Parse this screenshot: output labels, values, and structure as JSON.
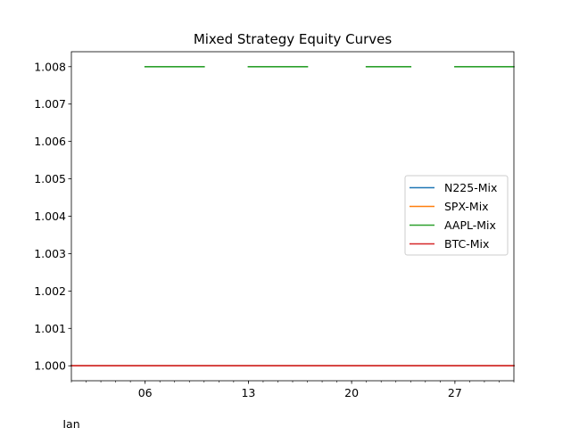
{
  "chart_data": {
    "type": "line",
    "title": "Mixed Strategy Equity Curves",
    "xlabel": "",
    "ylabel": "",
    "x_start": "2024-01-01",
    "x_end": "2024-01-31",
    "x_ticks": [
      {
        "date": "2024-01-06",
        "label": "06"
      },
      {
        "date": "2024-01-13",
        "label": "13"
      },
      {
        "date": "2024-01-20",
        "label": "20"
      },
      {
        "date": "2024-01-27",
        "label": "27"
      }
    ],
    "x_month_label": "Jan",
    "ylim": [
      0.9996,
      1.0084
    ],
    "y_ticks": [
      "1.000",
      "1.001",
      "1.002",
      "1.003",
      "1.004",
      "1.005",
      "1.006",
      "1.007",
      "1.008"
    ],
    "grid": false,
    "legend_position": "center-right",
    "series": [
      {
        "name": "N225-Mix",
        "color": "#1f77b4",
        "segments": [
          [
            [
              "2024-01-01",
              1.0
            ],
            [
              "2024-01-31",
              1.0
            ]
          ]
        ]
      },
      {
        "name": "SPX-Mix",
        "color": "#ff7f0e",
        "segments": [
          [
            [
              "2024-01-01",
              1.0
            ],
            [
              "2024-01-31",
              1.0
            ]
          ]
        ]
      },
      {
        "name": "AAPL-Mix",
        "color": "#2ca02c",
        "segments": [
          [
            [
              "2024-01-06",
              1.008
            ],
            [
              "2024-01-10",
              1.008
            ]
          ],
          [
            [
              "2024-01-13",
              1.008
            ],
            [
              "2024-01-17",
              1.008
            ]
          ],
          [
            [
              "2024-01-21",
              1.008
            ],
            [
              "2024-01-24",
              1.008
            ]
          ],
          [
            [
              "2024-01-27",
              1.008
            ],
            [
              "2024-01-31",
              1.008
            ]
          ]
        ]
      },
      {
        "name": "BTC-Mix",
        "color": "#d62728",
        "segments": [
          [
            [
              "2024-01-01",
              1.0
            ],
            [
              "2024-01-31",
              1.0
            ]
          ]
        ]
      }
    ]
  }
}
